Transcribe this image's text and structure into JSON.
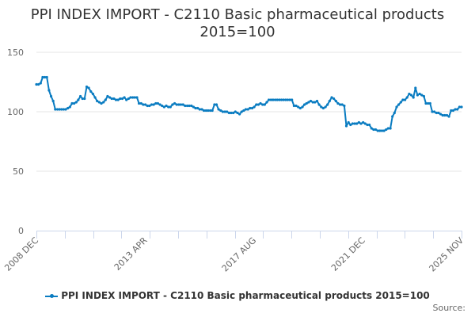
{
  "title_line1": "PPI INDEX IMPORT - C2110 Basic pharmaceutical products",
  "title_line2": "2015=100",
  "legend": {
    "label": "PPI INDEX IMPORT - C2110 Basic pharmaceutical products 2015=100",
    "color": "#0a7cc1"
  },
  "source_label": "Source:",
  "chart_data": {
    "type": "line",
    "title": "PPI INDEX IMPORT - C2110 Basic pharmaceutical products 2015=100",
    "xlabel": "",
    "ylabel": "",
    "ylim": [
      0,
      150
    ],
    "yticks": [
      0,
      50,
      100,
      150
    ],
    "grid": true,
    "legend_position": "bottom",
    "x_tick_labels": [
      "2008 DEC",
      "2013 APR",
      "2017 AUG",
      "2021 DEC",
      "2025 NOV"
    ],
    "x_tick_month_index": [
      0,
      52,
      104,
      156,
      203
    ],
    "x_range_months": [
      0,
      203
    ],
    "series": [
      {
        "name": "PPI INDEX IMPORT - C2110 Basic pharmaceutical products 2015=100",
        "color": "#0a7cc1",
        "points": [
          [
            0,
            123
          ],
          [
            1,
            123
          ],
          [
            2,
            124
          ],
          [
            3,
            129
          ],
          [
            4,
            129
          ],
          [
            5,
            129
          ],
          [
            6,
            118
          ],
          [
            7,
            113
          ],
          [
            8,
            109
          ],
          [
            9,
            102
          ],
          [
            10,
            102
          ],
          [
            11,
            102
          ],
          [
            12,
            102
          ],
          [
            13,
            102
          ],
          [
            14,
            102
          ],
          [
            15,
            103
          ],
          [
            16,
            104
          ],
          [
            17,
            107
          ],
          [
            18,
            107
          ],
          [
            19,
            108
          ],
          [
            20,
            110
          ],
          [
            21,
            113
          ],
          [
            22,
            111
          ],
          [
            23,
            111
          ],
          [
            24,
            121
          ],
          [
            25,
            120
          ],
          [
            26,
            117
          ],
          [
            27,
            115
          ],
          [
            28,
            112
          ],
          [
            29,
            109
          ],
          [
            30,
            108
          ],
          [
            31,
            107
          ],
          [
            32,
            108
          ],
          [
            33,
            110
          ],
          [
            34,
            113
          ],
          [
            35,
            112
          ],
          [
            36,
            111
          ],
          [
            37,
            111
          ],
          [
            38,
            110
          ],
          [
            39,
            110
          ],
          [
            40,
            111
          ],
          [
            41,
            111
          ],
          [
            42,
            112
          ],
          [
            43,
            110
          ],
          [
            44,
            111
          ],
          [
            45,
            112
          ],
          [
            46,
            112
          ],
          [
            47,
            112
          ],
          [
            48,
            112
          ],
          [
            49,
            107
          ],
          [
            50,
            107
          ],
          [
            51,
            106
          ],
          [
            52,
            106
          ],
          [
            53,
            105
          ],
          [
            54,
            105
          ],
          [
            55,
            106
          ],
          [
            56,
            106
          ],
          [
            57,
            107
          ],
          [
            58,
            107
          ],
          [
            59,
            106
          ],
          [
            60,
            105
          ],
          [
            61,
            104
          ],
          [
            62,
            105
          ],
          [
            63,
            104
          ],
          [
            64,
            104
          ],
          [
            65,
            106
          ],
          [
            66,
            107
          ],
          [
            67,
            106
          ],
          [
            68,
            106
          ],
          [
            69,
            106
          ],
          [
            70,
            106
          ],
          [
            71,
            105
          ],
          [
            72,
            105
          ],
          [
            73,
            105
          ],
          [
            74,
            105
          ],
          [
            75,
            104
          ],
          [
            76,
            103
          ],
          [
            77,
            103
          ],
          [
            78,
            102
          ],
          [
            79,
            102
          ],
          [
            80,
            101
          ],
          [
            81,
            101
          ],
          [
            82,
            101
          ],
          [
            83,
            101
          ],
          [
            84,
            101
          ],
          [
            85,
            106
          ],
          [
            86,
            106
          ],
          [
            87,
            102
          ],
          [
            88,
            101
          ],
          [
            89,
            100
          ],
          [
            90,
            100
          ],
          [
            91,
            100
          ],
          [
            92,
            99
          ],
          [
            93,
            99
          ],
          [
            94,
            99
          ],
          [
            95,
            100
          ],
          [
            96,
            99
          ],
          [
            97,
            98
          ],
          [
            98,
            100
          ],
          [
            99,
            101
          ],
          [
            100,
            102
          ],
          [
            101,
            102
          ],
          [
            102,
            103
          ],
          [
            103,
            103
          ],
          [
            104,
            104
          ],
          [
            105,
            106
          ],
          [
            106,
            106
          ],
          [
            107,
            107
          ],
          [
            108,
            106
          ],
          [
            109,
            106
          ],
          [
            110,
            108
          ],
          [
            111,
            110
          ],
          [
            112,
            110
          ],
          [
            113,
            110
          ],
          [
            114,
            110
          ],
          [
            115,
            110
          ],
          [
            116,
            110
          ],
          [
            117,
            110
          ],
          [
            118,
            110
          ],
          [
            119,
            110
          ],
          [
            120,
            110
          ],
          [
            121,
            110
          ],
          [
            122,
            110
          ],
          [
            123,
            105
          ],
          [
            124,
            105
          ],
          [
            125,
            104
          ],
          [
            126,
            103
          ],
          [
            127,
            104
          ],
          [
            128,
            106
          ],
          [
            129,
            107
          ],
          [
            130,
            108
          ],
          [
            131,
            109
          ],
          [
            132,
            108
          ],
          [
            133,
            108
          ],
          [
            134,
            109
          ],
          [
            135,
            106
          ],
          [
            136,
            104
          ],
          [
            137,
            103
          ],
          [
            138,
            104
          ],
          [
            139,
            106
          ],
          [
            140,
            109
          ],
          [
            141,
            112
          ],
          [
            142,
            111
          ],
          [
            143,
            109
          ],
          [
            144,
            107
          ],
          [
            145,
            106
          ],
          [
            146,
            106
          ],
          [
            147,
            105
          ],
          [
            148,
            88
          ],
          [
            149,
            91
          ],
          [
            150,
            89
          ],
          [
            151,
            90
          ],
          [
            152,
            90
          ],
          [
            153,
            90
          ],
          [
            154,
            91
          ],
          [
            155,
            90
          ],
          [
            156,
            91
          ],
          [
            157,
            90
          ],
          [
            158,
            89
          ],
          [
            159,
            89
          ],
          [
            160,
            86
          ],
          [
            161,
            85
          ],
          [
            162,
            85
          ],
          [
            163,
            84
          ],
          [
            164,
            84
          ],
          [
            165,
            84
          ],
          [
            166,
            84
          ],
          [
            167,
            85
          ],
          [
            168,
            86
          ],
          [
            169,
            86
          ],
          [
            170,
            96
          ],
          [
            171,
            99
          ],
          [
            172,
            104
          ],
          [
            173,
            106
          ],
          [
            174,
            108
          ],
          [
            175,
            110
          ],
          [
            176,
            110
          ],
          [
            177,
            112
          ],
          [
            178,
            115
          ],
          [
            179,
            114
          ],
          [
            180,
            112
          ],
          [
            181,
            120
          ],
          [
            182,
            114
          ],
          [
            183,
            115
          ],
          [
            184,
            114
          ],
          [
            185,
            113
          ],
          [
            186,
            107
          ],
          [
            187,
            107
          ],
          [
            188,
            107
          ],
          [
            189,
            100
          ],
          [
            190,
            100
          ],
          [
            191,
            99
          ],
          [
            192,
            99
          ],
          [
            193,
            98
          ],
          [
            194,
            97
          ],
          [
            195,
            97
          ],
          [
            196,
            97
          ],
          [
            197,
            96
          ],
          [
            198,
            101
          ],
          [
            199,
            101
          ],
          [
            200,
            102
          ],
          [
            201,
            102
          ],
          [
            202,
            104
          ],
          [
            203,
            104
          ]
        ]
      }
    ]
  }
}
